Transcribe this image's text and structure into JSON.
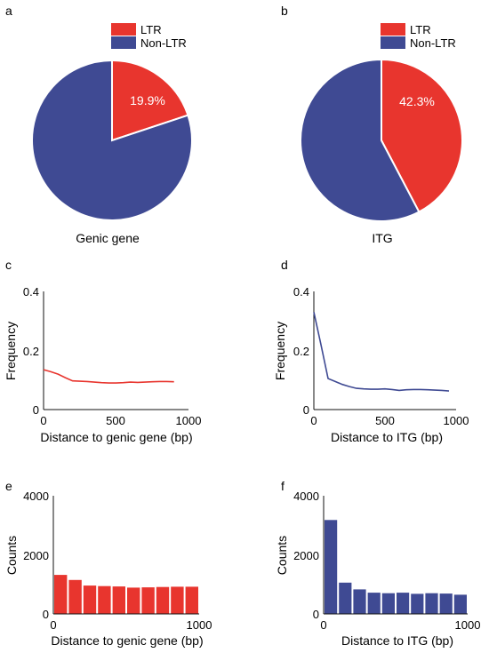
{
  "colors": {
    "ltr": "#e8352e",
    "nonltr": "#3f4a93",
    "axis": "#111111"
  },
  "panels": [
    {
      "letter": "a",
      "caption": "Genic gene"
    },
    {
      "letter": "b",
      "caption": "ITG"
    },
    {
      "letter": "c"
    },
    {
      "letter": "d"
    },
    {
      "letter": "e"
    },
    {
      "letter": "f"
    }
  ],
  "chart_data": [
    {
      "type": "pie",
      "panel": "a",
      "legend": [
        "LTR",
        "Non-LTR"
      ],
      "legend_position": "top-right",
      "slices": [
        {
          "label": "LTR",
          "value": 19.9,
          "text": "19.9%",
          "color": "#e8352e"
        },
        {
          "label": "Non-LTR",
          "value": 80.1,
          "color": "#3f4a93"
        }
      ],
      "caption": "Genic gene"
    },
    {
      "type": "pie",
      "panel": "b",
      "legend": [
        "LTR",
        "Non-LTR"
      ],
      "legend_position": "top-right",
      "slices": [
        {
          "label": "LTR",
          "value": 42.3,
          "text": "42.3%",
          "color": "#e8352e"
        },
        {
          "label": "Non-LTR",
          "value": 57.7,
          "color": "#3f4a93"
        }
      ],
      "caption": "ITG"
    },
    {
      "type": "line",
      "panel": "c",
      "color": "#e8352e",
      "x": [
        0,
        50,
        100,
        150,
        200,
        250,
        300,
        350,
        400,
        450,
        500,
        550,
        600,
        650,
        700,
        750,
        800,
        850,
        900
      ],
      "y": [
        0.135,
        0.128,
        0.12,
        0.108,
        0.097,
        0.096,
        0.095,
        0.093,
        0.091,
        0.09,
        0.09,
        0.091,
        0.093,
        0.092,
        0.093,
        0.094,
        0.095,
        0.095,
        0.094
      ],
      "xlabel": "Distance to genic gene (bp)",
      "ylabel": "Frequency",
      "xlim": [
        0,
        1000
      ],
      "ylim": [
        0,
        0.4
      ],
      "xticks": [
        "0",
        "500",
        "1000"
      ],
      "yticks": [
        "0",
        "0.2",
        "0.4"
      ]
    },
    {
      "type": "line",
      "panel": "d",
      "color": "#3f4a93",
      "x": [
        0,
        50,
        100,
        150,
        200,
        250,
        300,
        350,
        400,
        450,
        500,
        550,
        600,
        650,
        700,
        750,
        800,
        850,
        900,
        950
      ],
      "y": [
        0.33,
        0.22,
        0.105,
        0.095,
        0.085,
        0.078,
        0.072,
        0.07,
        0.069,
        0.069,
        0.07,
        0.068,
        0.065,
        0.067,
        0.068,
        0.068,
        0.067,
        0.066,
        0.065,
        0.063
      ],
      "xlabel": "Distance to ITG (bp)",
      "ylabel": "Frequency",
      "xlim": [
        0,
        1000
      ],
      "ylim": [
        0,
        0.4
      ],
      "xticks": [
        "0",
        "500",
        "1000"
      ],
      "yticks": [
        "0",
        "0.2",
        "0.4"
      ]
    },
    {
      "type": "bar",
      "panel": "e",
      "color": "#e8352e",
      "bin_starts": [
        0,
        100,
        200,
        300,
        400,
        500,
        600,
        700,
        800,
        900
      ],
      "bin_width": 100,
      "values": [
        1320,
        1150,
        960,
        940,
        930,
        890,
        900,
        910,
        920,
        920
      ],
      "xlabel": "Distance to genic gene (bp)",
      "ylabel": "Counts",
      "xlim": [
        0,
        1000
      ],
      "ylim": [
        0,
        4000
      ],
      "xticks": [
        "0",
        "1000"
      ],
      "yticks": [
        "0",
        "2000",
        "4000"
      ]
    },
    {
      "type": "bar",
      "panel": "f",
      "color": "#3f4a93",
      "bin_starts": [
        0,
        100,
        200,
        300,
        400,
        500,
        600,
        700,
        800,
        900
      ],
      "bin_width": 100,
      "values": [
        3180,
        1060,
        830,
        720,
        700,
        720,
        680,
        700,
        690,
        650
      ],
      "xlabel": "Distance to ITG (bp)",
      "ylabel": "Counts",
      "xlim": [
        0,
        1000
      ],
      "ylim": [
        0,
        4000
      ],
      "xticks": [
        "0",
        "1000"
      ],
      "yticks": [
        "0",
        "2000",
        "4000"
      ]
    }
  ]
}
